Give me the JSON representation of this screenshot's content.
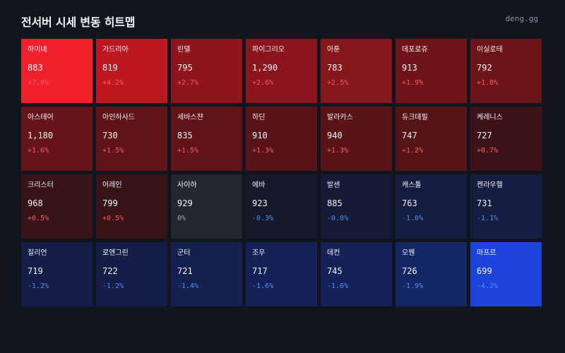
{
  "header": {
    "title": "전서버 시세 변동 히트맵",
    "brand": "deng.gg"
  },
  "colors": {
    "background": "#11151e",
    "up_text": "#ff5a64",
    "down_text": "#4d8ff5",
    "flat_text": "#a0a6b0"
  },
  "servers": [
    {
      "name": "하이네",
      "price": "883",
      "change": "+7.0%",
      "bg": "#f0212c"
    },
    {
      "name": "가드리아",
      "price": "819",
      "change": "+4.2%",
      "bg": "#bd1720"
    },
    {
      "name": "린델",
      "price": "795",
      "change": "+2.7%",
      "bg": "#8e151b"
    },
    {
      "name": "파이그리오",
      "price": "1,290",
      "change": "+2.6%",
      "bg": "#89161c"
    },
    {
      "name": "아툰",
      "price": "783",
      "change": "+2.5%",
      "bg": "#85161c"
    },
    {
      "name": "데포로쥬",
      "price": "913",
      "change": "+1.9%",
      "bg": "#6f151a"
    },
    {
      "name": "이실로테",
      "price": "792",
      "change": "+1.8%",
      "bg": "#6c1519"
    },
    {
      "name": "아스테어",
      "price": "1,180",
      "change": "+1.6%",
      "bg": "#651519"
    },
    {
      "name": "아인하사드",
      "price": "730",
      "change": "+1.5%",
      "bg": "#611418"
    },
    {
      "name": "세바스챤",
      "price": "835",
      "change": "+1.5%",
      "bg": "#611418"
    },
    {
      "name": "하딘",
      "price": "910",
      "change": "+1.3%",
      "bg": "#591418"
    },
    {
      "name": "발라카스",
      "price": "940",
      "change": "+1.3%",
      "bg": "#591418"
    },
    {
      "name": "듀크데필",
      "price": "747",
      "change": "+1.2%",
      "bg": "#551417"
    },
    {
      "name": "케레니스",
      "price": "727",
      "change": "+0.7%",
      "bg": "#3e1317"
    },
    {
      "name": "크리스터",
      "price": "968",
      "change": "+0.5%",
      "bg": "#361317"
    },
    {
      "name": "어레인",
      "price": "799",
      "change": "+0.5%",
      "bg": "#361317"
    },
    {
      "name": "사이하",
      "price": "929",
      "change": "0%",
      "bg": "#23272f"
    },
    {
      "name": "에바",
      "price": "923",
      "change": "-0.3%",
      "bg": "#15192a"
    },
    {
      "name": "발센",
      "price": "885",
      "change": "-0.8%",
      "bg": "#141b36"
    },
    {
      "name": "캐스톨",
      "price": "763",
      "change": "-1.0%",
      "bg": "#141d3f"
    },
    {
      "name": "켄라우헬",
      "price": "731",
      "change": "-1.1%",
      "bg": "#141d42"
    },
    {
      "name": "질리언",
      "price": "719",
      "change": "-1.2%",
      "bg": "#141e47"
    },
    {
      "name": "로엔그린",
      "price": "722",
      "change": "-1.2%",
      "bg": "#141e47"
    },
    {
      "name": "군터",
      "price": "721",
      "change": "-1.4%",
      "bg": "#142050"
    },
    {
      "name": "조우",
      "price": "717",
      "change": "-1.6%",
      "bg": "#142258"
    },
    {
      "name": "데컨",
      "price": "745",
      "change": "-1.6%",
      "bg": "#142258"
    },
    {
      "name": "오웬",
      "price": "726",
      "change": "-1.9%",
      "bg": "#152665"
    },
    {
      "name": "마프르",
      "price": "699",
      "change": "-4.2%",
      "bg": "#1e43dc"
    }
  ]
}
